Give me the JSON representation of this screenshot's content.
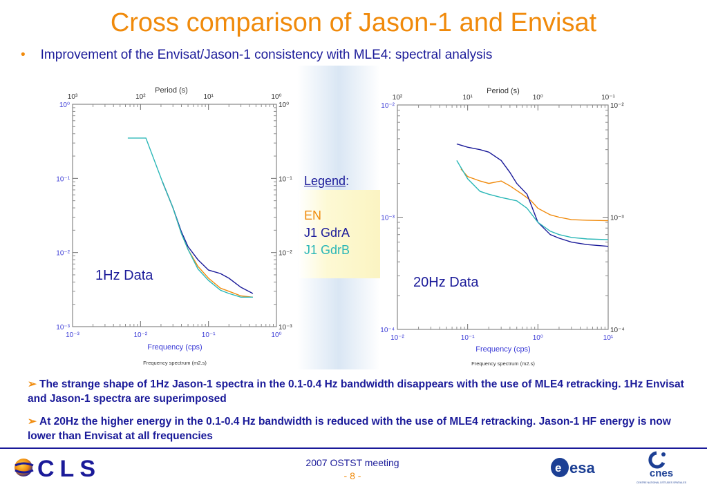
{
  "slide": {
    "title": "Cross comparison of Jason-1 and Envisat",
    "bullet": "Improvement of the Envisat/Jason-1 consistency with MLE4: spectral analysis",
    "bullet_marker": "•"
  },
  "legend": {
    "title": "Legend",
    "colon": ":",
    "entries": [
      {
        "label": "EN",
        "color": "#f08a0b"
      },
      {
        "label": "J1 GdrA",
        "color": "#1a1a99"
      },
      {
        "label": "J1 GdrB",
        "color": "#2ab7b7"
      }
    ]
  },
  "chart_data": [
    {
      "type": "line",
      "annotation": "1Hz Data",
      "xlabel": "Frequency (cps)",
      "top_axis_label": "Period (s)",
      "caption": "Frequency spectrum (m2.s)",
      "x_scale": "log",
      "y_scale": "log",
      "xlim": [
        0.001,
        1
      ],
      "ylim": [
        0.001,
        1
      ],
      "x_tick_labels": [
        "10⁻³",
        "10⁻²",
        "10⁻¹",
        "10⁰"
      ],
      "top_tick_labels": [
        "10³",
        "10²",
        "10¹",
        "10⁰"
      ],
      "y_tick_labels": [
        "10⁰",
        "10⁻¹",
        "10⁻²",
        "10⁻³"
      ],
      "grid": false,
      "series": [
        {
          "name": "EN",
          "color": "#f08a0b",
          "x": [
            0.021,
            0.03,
            0.04,
            0.05,
            0.07,
            0.1,
            0.15,
            0.2,
            0.3,
            0.45
          ],
          "y": [
            0.09,
            0.04,
            0.018,
            0.011,
            0.0065,
            0.0045,
            0.0033,
            0.003,
            0.0026,
            0.0025
          ]
        },
        {
          "name": "J1 GdrA",
          "color": "#1a1a99",
          "x": [
            0.021,
            0.03,
            0.04,
            0.05,
            0.07,
            0.1,
            0.15,
            0.2,
            0.3,
            0.45
          ],
          "y": [
            0.09,
            0.04,
            0.019,
            0.012,
            0.008,
            0.0058,
            0.0052,
            0.0045,
            0.0034,
            0.0028
          ]
        },
        {
          "name": "J1 GdrB",
          "color": "#2ab7b7",
          "x": [
            0.0065,
            0.012,
            0.021,
            0.03,
            0.04,
            0.05,
            0.07,
            0.1,
            0.15,
            0.2,
            0.3,
            0.45
          ],
          "y": [
            0.35,
            0.35,
            0.09,
            0.04,
            0.018,
            0.011,
            0.006,
            0.0042,
            0.0031,
            0.0028,
            0.0025,
            0.0025
          ]
        }
      ]
    },
    {
      "type": "line",
      "annotation": "20Hz Data",
      "xlabel": "Frequency (cps)",
      "top_axis_label": "Period (s)",
      "caption": "Frequency spectrum (m2.s)",
      "x_scale": "log",
      "y_scale": "log",
      "xlim": [
        0.01,
        10
      ],
      "ylim": [
        0.0001,
        0.01
      ],
      "x_tick_labels": [
        "10⁻²",
        "10⁻¹",
        "10⁰",
        "10¹"
      ],
      "top_tick_labels": [
        "10²",
        "10¹",
        "10⁰",
        "10⁻¹"
      ],
      "y_tick_labels": [
        "10⁻²",
        "10⁻³",
        "10⁻⁴"
      ],
      "grid": false,
      "series": [
        {
          "name": "EN",
          "color": "#f08a0b",
          "x": [
            0.08,
            0.1,
            0.15,
            0.2,
            0.3,
            0.4,
            0.6,
            0.8,
            1.0,
            1.5,
            2,
            3,
            5,
            10
          ],
          "y": [
            0.0027,
            0.0023,
            0.0021,
            0.002,
            0.0021,
            0.0019,
            0.0016,
            0.0014,
            0.0012,
            0.00105,
            0.001,
            0.00095,
            0.00094,
            0.00093
          ]
        },
        {
          "name": "J1 GdrA",
          "color": "#1a1a99",
          "x": [
            0.07,
            0.1,
            0.15,
            0.2,
            0.3,
            0.4,
            0.5,
            0.7,
            1.0,
            1.5,
            2,
            3,
            5,
            10
          ],
          "y": [
            0.0045,
            0.0042,
            0.004,
            0.0038,
            0.0032,
            0.0025,
            0.002,
            0.0016,
            0.0009,
            0.0007,
            0.00065,
            0.0006,
            0.00057,
            0.00055
          ]
        },
        {
          "name": "J1 GdrB",
          "color": "#2ab7b7",
          "x": [
            0.07,
            0.1,
            0.15,
            0.2,
            0.3,
            0.5,
            0.7,
            1.0,
            1.5,
            2,
            3,
            5,
            10
          ],
          "y": [
            0.0032,
            0.0022,
            0.0017,
            0.0016,
            0.0015,
            0.0014,
            0.0012,
            0.0009,
            0.00075,
            0.0007,
            0.00066,
            0.00064,
            0.00063
          ]
        }
      ]
    }
  ],
  "findings": [
    {
      "marker": "➢",
      "text": "The strange shape of 1Hz Jason-1 spectra in the 0.1-0.4 Hz bandwidth disappears with the use of MLE4 retracking. 1Hz Envisat and Jason-1 spectra are superimposed"
    },
    {
      "marker": "➢",
      "text": "At 20Hz the higher energy in the 0.1-0.4 Hz bandwidth is reduced with the use of MLE4 retracking. Jason-1 HF energy is now lower than Envisat at all frequencies"
    }
  ],
  "footer": {
    "meeting": "2007 OSTST meeting",
    "page": "- 8 -",
    "logos": [
      "CLS",
      "esa",
      "cnes"
    ]
  },
  "logo_text": {
    "cls": "CLS",
    "esa": "esa",
    "cnes": "cnes",
    "cnes_sub": "CENTRE NATIONAL D'ÉTUDES SPATIALES"
  }
}
